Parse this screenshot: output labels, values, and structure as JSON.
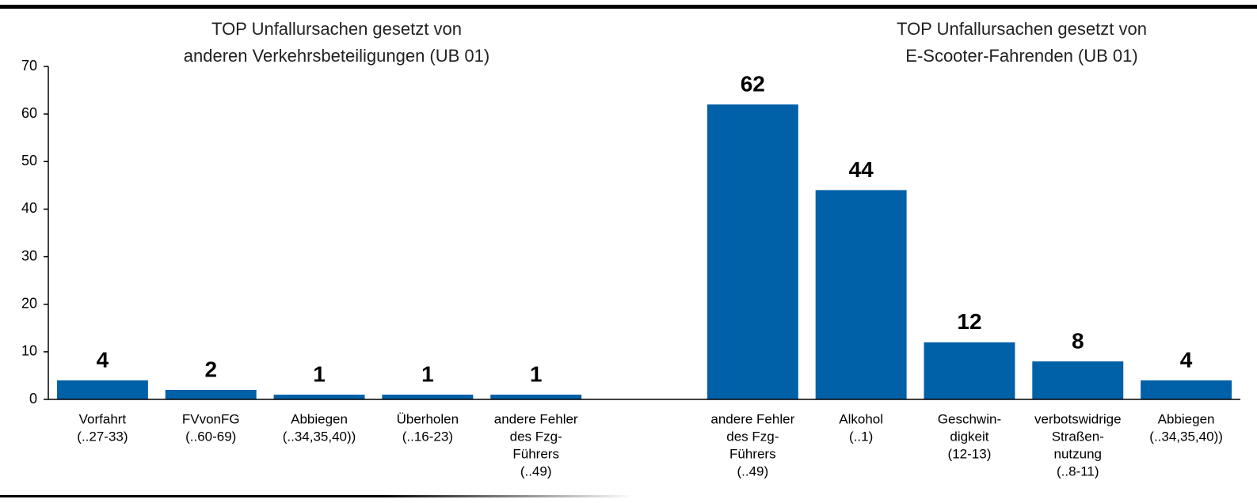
{
  "chart_data": {
    "type": "bar",
    "annotations": [
      {
        "text": [
          "TOP Unfallursachen gesetzt von",
          "anderen Verkehrsbeteiligungen (UB 01)"
        ]
      },
      {
        "text": [
          "TOP Unfallursachen gesetzt von",
          "E-Scooter-Fahrenden (UB 01)"
        ]
      }
    ],
    "categories": [
      [
        "Vorfahrt",
        "(..27-33)"
      ],
      [
        "FVvonFG",
        "(..60-69)"
      ],
      [
        "Abbiegen",
        "(..34,35,40))"
      ],
      [
        "Überholen",
        "(..16-23)"
      ],
      [
        "andere Fehler",
        "des Fzg-",
        "Führers",
        "(..49)"
      ],
      null,
      [
        "andere Fehler",
        "des Fzg-",
        "Führers",
        "(..49)"
      ],
      [
        "Alkohol",
        "(..1)"
      ],
      [
        "Geschwin-",
        "digkeit",
        "(12-13)"
      ],
      [
        "verbotswidrige",
        "Straßen-",
        "nutzung",
        "(..8-11)"
      ],
      [
        "Abbiegen",
        "(..34,35,40))"
      ]
    ],
    "values": [
      4,
      2,
      1,
      1,
      1,
      null,
      62,
      44,
      12,
      8,
      4
    ],
    "color": "#0060a8",
    "ylim": [
      0,
      70
    ],
    "yticks": [
      0,
      10,
      20,
      30,
      40,
      50,
      60,
      70
    ]
  }
}
